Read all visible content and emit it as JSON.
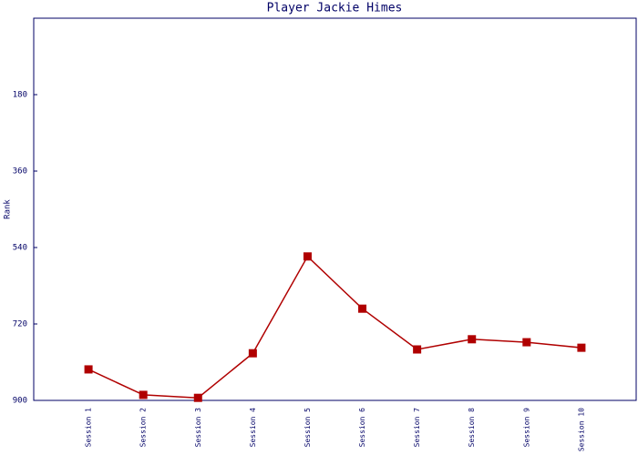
{
  "chart_data": {
    "type": "line",
    "title": "Player Jackie Himes",
    "y_label": "Rank",
    "categories": [
      "Session 1",
      "Session 2",
      "Session 3",
      "Session 4",
      "Session 5",
      "Session 6",
      "Session 7",
      "Session 8",
      "Session 9",
      "Session 10"
    ],
    "values": [
      827,
      887,
      894,
      789,
      561,
      684,
      780,
      756,
      763,
      776
    ],
    "color": "#b00000",
    "ylim": [
      0,
      900
    ],
    "y_inverted": true,
    "yticks": [
      180,
      360,
      540,
      720,
      900
    ],
    "grid": false
  }
}
